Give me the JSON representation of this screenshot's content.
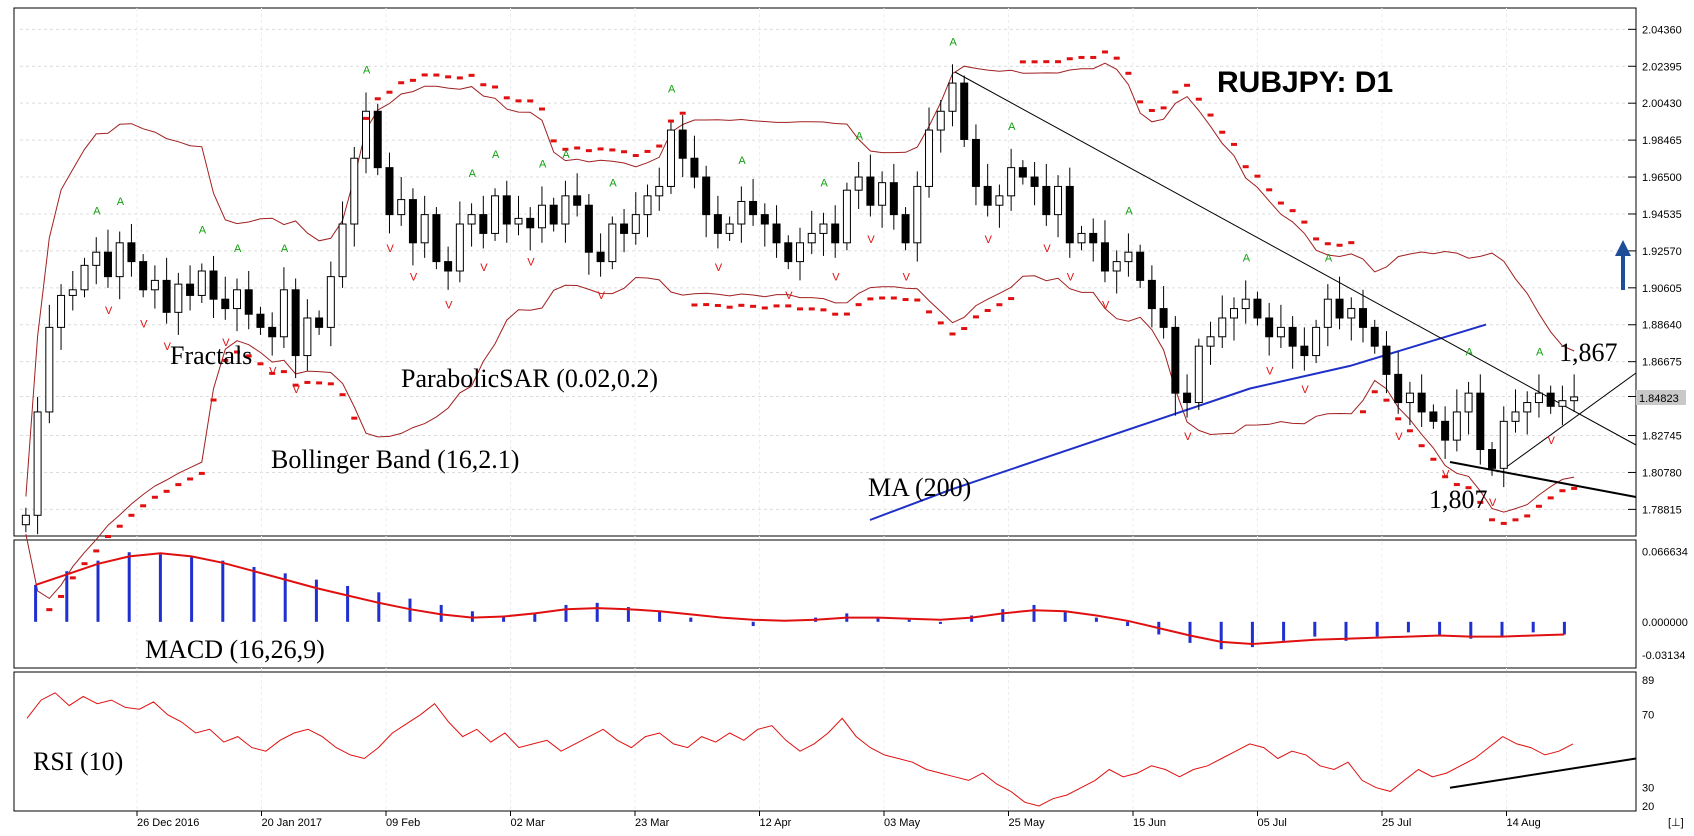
{
  "chart_data": [
    {
      "type": "candlestick",
      "title": "RUBJPY: D1",
      "yticks": [
        "2.04360",
        "2.02395",
        "2.00430",
        "1.98465",
        "1.96500",
        "1.94535",
        "1.92570",
        "1.90605",
        "1.88640",
        "1.86675",
        "1.84823",
        "1.82745",
        "1.80780",
        "1.78815"
      ],
      "ylim": [
        1.7825,
        2.0475
      ],
      "current_price": "1.84823",
      "xticks": [
        "26 Dec 2016",
        "20 Jan 2017",
        "09 Feb",
        "02 Mar",
        "23 Mar",
        "12 Apr",
        "03 May",
        "25 May",
        "15 Jun",
        "05 Jul",
        "25 Jul",
        "14 Aug"
      ],
      "indicators": {
        "fractals": "Fractals",
        "parabolic_sar": "ParabolicSAR (0.02,0.2)",
        "bollinger": "Bollinger Band (16,2.1)",
        "ma": "MA (200)"
      },
      "annotations": {
        "high_level": "1,867",
        "low_level": "1,807"
      },
      "close_series": [
        1.785,
        1.84,
        1.885,
        1.902,
        1.905,
        1.918,
        1.925,
        1.912,
        1.93,
        1.92,
        1.905,
        1.91,
        1.893,
        1.908,
        1.902,
        1.915,
        1.9,
        1.895,
        1.905,
        1.892,
        1.885,
        1.88,
        1.905,
        1.87,
        1.89,
        1.885,
        1.912,
        1.94,
        1.975,
        2.0,
        1.97,
        1.945,
        1.953,
        1.93,
        1.945,
        1.92,
        1.915,
        1.94,
        1.945,
        1.935,
        1.955,
        1.94,
        1.943,
        1.938,
        1.95,
        1.94,
        1.955,
        1.95,
        1.925,
        1.92,
        1.94,
        1.935,
        1.945,
        1.955,
        1.96,
        1.99,
        1.975,
        1.965,
        1.945,
        1.935,
        1.94,
        1.952,
        1.945,
        1.94,
        1.93,
        1.92,
        1.93,
        1.935,
        1.94,
        1.93,
        1.958,
        1.965,
        1.95,
        1.962,
        1.945,
        1.93,
        1.96,
        1.99,
        2.0,
        2.015,
        1.985,
        1.96,
        1.95,
        1.955,
        1.97,
        1.965,
        1.96,
        1.945,
        1.96,
        1.93,
        1.935,
        1.93,
        1.915,
        1.92,
        1.925,
        1.91,
        1.895,
        1.885,
        1.85,
        1.845,
        1.875,
        1.88,
        1.89,
        1.895,
        1.9,
        1.89,
        1.88,
        1.885,
        1.875,
        1.87,
        1.885,
        1.9,
        1.89,
        1.895,
        1.885,
        1.875,
        1.86,
        1.845,
        1.85,
        1.84,
        1.835,
        1.825,
        1.84,
        1.85,
        1.82,
        1.81,
        1.835,
        1.84,
        1.845,
        1.85,
        1.843,
        1.846,
        1.848
      ],
      "ma200": [
        [
          870,
          1.7825
        ],
        [
          950,
          1.7985
        ],
        [
          1050,
          1.8165
        ],
        [
          1150,
          1.8345
        ],
        [
          1250,
          1.8525
        ],
        [
          1350,
          1.8645
        ],
        [
          1486,
          1.8865
        ]
      ]
    },
    {
      "type": "histogram+line",
      "title": "MACD (16,26,9)",
      "yticks": [
        "0.066634",
        "0.000000",
        "-0.03134"
      ],
      "ylim": [
        -0.04,
        0.07
      ],
      "hist": [
        0.035,
        0.048,
        0.058,
        0.066,
        0.064,
        0.062,
        0.058,
        0.052,
        0.046,
        0.04,
        0.034,
        0.028,
        0.022,
        0.016,
        0.01,
        0.006,
        0.008,
        0.016,
        0.018,
        0.014,
        0.01,
        0.004,
        0.0,
        -0.004,
        0.0,
        0.004,
        0.008,
        0.004,
        0.002,
        -0.002,
        0.006,
        0.012,
        0.016,
        0.01,
        0.004,
        -0.004,
        -0.012,
        -0.02,
        -0.026,
        -0.024,
        -0.018,
        -0.014,
        -0.018,
        -0.014,
        -0.01,
        -0.012,
        -0.016,
        -0.014,
        -0.01,
        -0.012
      ],
      "signal": [
        0.035,
        0.045,
        0.055,
        0.062,
        0.065,
        0.062,
        0.056,
        0.048,
        0.04,
        0.032,
        0.025,
        0.018,
        0.012,
        0.007,
        0.004,
        0.005,
        0.008,
        0.012,
        0.013,
        0.012,
        0.01,
        0.007,
        0.004,
        0.002,
        0.001,
        0.002,
        0.004,
        0.004,
        0.003,
        0.002,
        0.004,
        0.008,
        0.011,
        0.01,
        0.006,
        0.001,
        -0.006,
        -0.013,
        -0.019,
        -0.021,
        -0.019,
        -0.017,
        -0.016,
        -0.015,
        -0.014,
        -0.013,
        -0.014,
        -0.014,
        -0.013,
        -0.012
      ]
    },
    {
      "type": "line",
      "title": "RSI (10)",
      "yticks": [
        "89",
        "70",
        "30",
        "20"
      ],
      "ylim": [
        20,
        89
      ],
      "values": [
        68,
        78,
        82,
        75,
        80,
        76,
        78,
        74,
        73,
        77,
        70,
        66,
        60,
        62,
        55,
        58,
        52,
        50,
        56,
        60,
        62,
        58,
        52,
        48,
        46,
        52,
        60,
        65,
        70,
        76,
        66,
        58,
        62,
        55,
        60,
        52,
        54,
        56,
        50,
        54,
        58,
        62,
        56,
        52,
        58,
        60,
        54,
        52,
        58,
        55,
        60,
        56,
        62,
        64,
        56,
        50,
        54,
        60,
        68,
        58,
        52,
        48,
        46,
        44,
        40,
        38,
        36,
        34,
        38,
        32,
        28,
        22,
        20,
        24,
        26,
        30,
        34,
        40,
        36,
        38,
        42,
        40,
        36,
        40,
        42,
        46,
        50,
        54,
        52,
        46,
        50,
        48,
        42,
        40,
        44,
        34,
        30,
        28,
        34,
        40,
        36,
        38,
        42,
        46,
        52,
        58,
        54,
        52,
        48,
        50,
        54
      ]
    }
  ]
}
